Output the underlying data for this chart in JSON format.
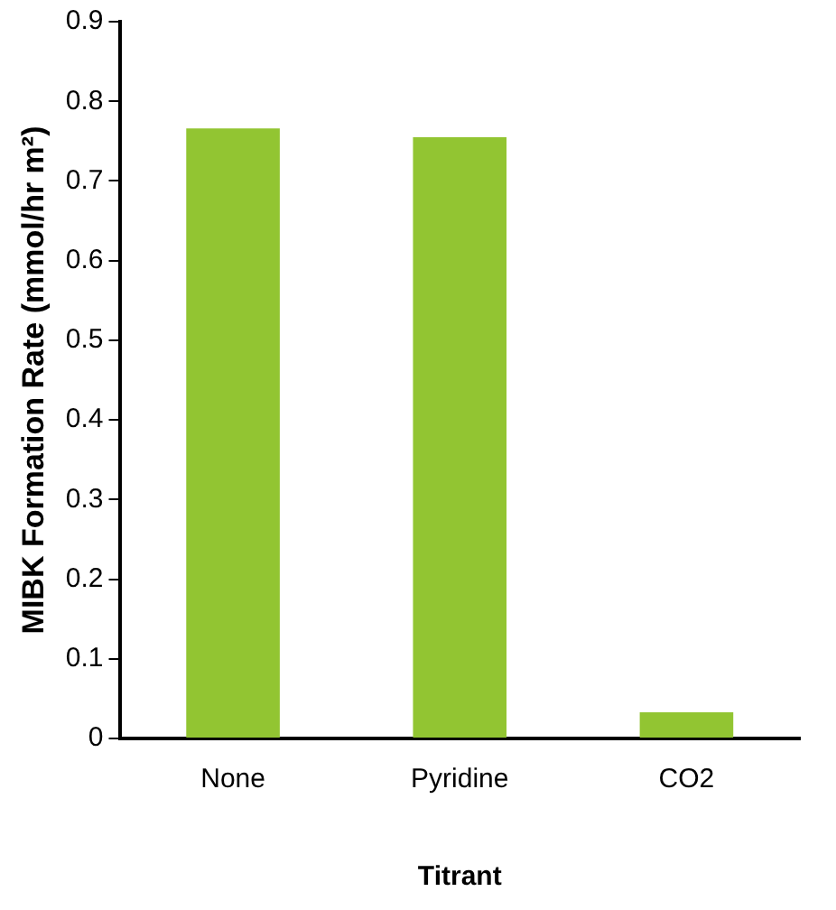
{
  "chart_data": {
    "type": "bar",
    "xlabel": "Titrant",
    "ylabel": "MIBK Formation Rate (mmol/hr m²)",
    "categories": [
      "None",
      "Pyridine",
      "CO2"
    ],
    "values": [
      0.766,
      0.755,
      0.033
    ],
    "color": "#92c532",
    "ylim": [
      0,
      0.9
    ],
    "yticks": [
      0,
      0.1,
      0.2,
      0.3,
      0.4,
      0.5,
      0.6,
      0.7,
      0.8,
      0.9
    ],
    "grid": false,
    "legend": false
  }
}
